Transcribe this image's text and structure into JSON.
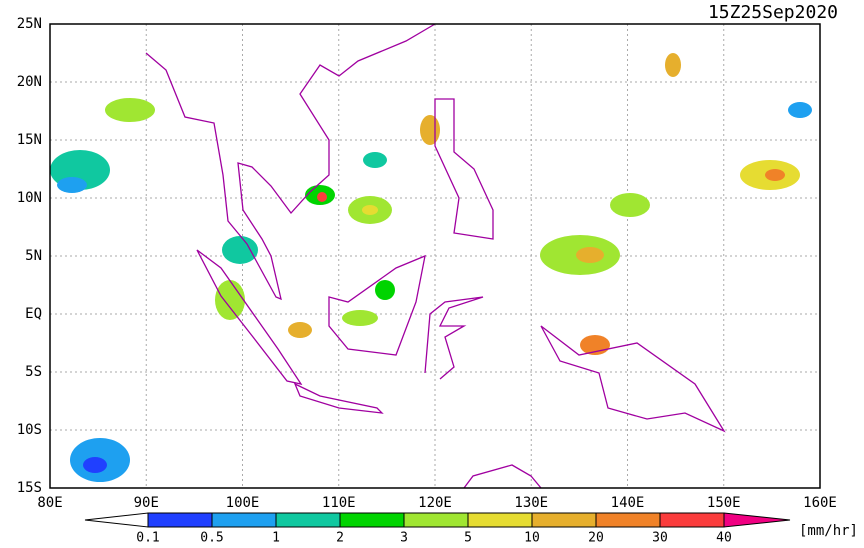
{
  "title": "15Z25Sep2020",
  "map": {
    "lat_labels": [
      "25N",
      "20N",
      "15N",
      "10N",
      "5N",
      "EQ",
      "5S",
      "10S",
      "15S"
    ],
    "lon_labels": [
      "80E",
      "90E",
      "100E",
      "110E",
      "120E",
      "130E",
      "140E",
      "150E",
      "160E"
    ]
  },
  "colorbar": {
    "labels": [
      "0.1",
      "0.5",
      "1",
      "2",
      "3",
      "5",
      "10",
      "20",
      "30",
      "40"
    ],
    "colors": [
      "#2040ff",
      "#1ea0f0",
      "#10c8a0",
      "#00d400",
      "#a0e632",
      "#e6dc32",
      "#e6af2d",
      "#f08228",
      "#fa3c3c",
      "#f00082"
    ],
    "unit": "[mm/hr]"
  }
}
